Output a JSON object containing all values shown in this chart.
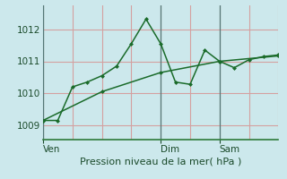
{
  "background_color": "#cce8ec",
  "grid_color_h": "#d4a0a0",
  "grid_color_v": "#d4a0a0",
  "line_color": "#1a6b2a",
  "xlabel": "Pression niveau de la mer( hPa )",
  "ylim": [
    1008.55,
    1012.75
  ],
  "yticks": [
    1009,
    1010,
    1011,
    1012
  ],
  "xlim": [
    0,
    96
  ],
  "line1_x": [
    0,
    6,
    12,
    18,
    24,
    30,
    36,
    42,
    48,
    54,
    60,
    66,
    72,
    78,
    84,
    90,
    96
  ],
  "line1_y": [
    1009.15,
    1009.15,
    1010.2,
    1010.35,
    1010.55,
    1010.85,
    1011.55,
    1012.32,
    1011.55,
    1010.35,
    1010.28,
    1011.35,
    1011.0,
    1010.8,
    1011.05,
    1011.15,
    1011.2
  ],
  "line2_x": [
    0,
    24,
    48,
    72,
    96
  ],
  "line2_y": [
    1009.15,
    1010.05,
    1010.65,
    1011.0,
    1011.17
  ],
  "vline_positions": [
    0,
    48,
    72
  ],
  "vline_color": "#557777",
  "xtick_pos": [
    0,
    48,
    72
  ],
  "xtick_labels": [
    "Ven",
    "Dim",
    "Sam"
  ],
  "bottom_border_color": "#2d7a3a",
  "spine_color": "#557777",
  "xlabel_fontsize": 8,
  "ytick_fontsize": 7.5,
  "xtick_fontsize": 7.5
}
